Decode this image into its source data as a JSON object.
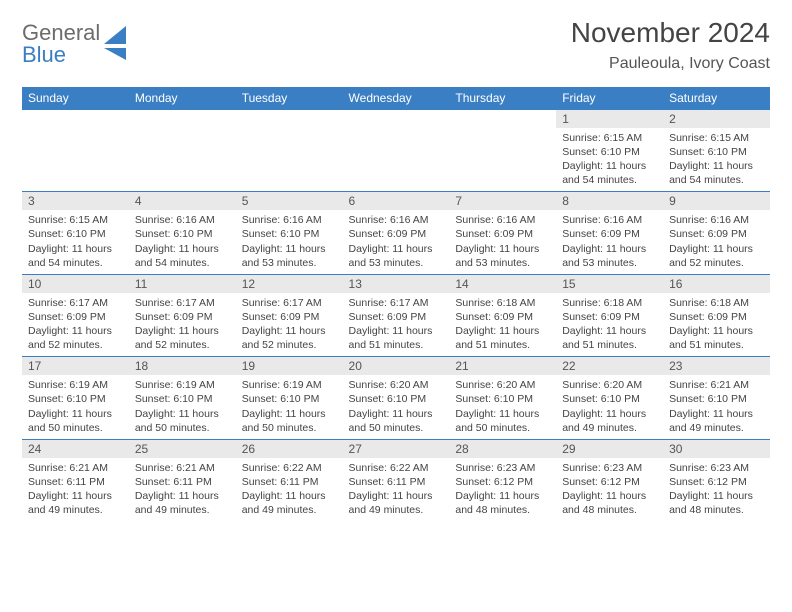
{
  "logo": {
    "top": "General",
    "bottom": "Blue"
  },
  "title": "November 2024",
  "location": "Pauleoula, Ivory Coast",
  "colors": {
    "header_blue": "#3a7fc4",
    "gray_text": "#6c6c6c",
    "daynum_bg": "#e9e9e9"
  },
  "weekdays": [
    "Sunday",
    "Monday",
    "Tuesday",
    "Wednesday",
    "Thursday",
    "Friday",
    "Saturday"
  ],
  "weeks": [
    [
      null,
      null,
      null,
      null,
      null,
      {
        "n": "1",
        "sr": "Sunrise: 6:15 AM",
        "ss": "Sunset: 6:10 PM",
        "dl": "Daylight: 11 hours and 54 minutes."
      },
      {
        "n": "2",
        "sr": "Sunrise: 6:15 AM",
        "ss": "Sunset: 6:10 PM",
        "dl": "Daylight: 11 hours and 54 minutes."
      }
    ],
    [
      {
        "n": "3",
        "sr": "Sunrise: 6:15 AM",
        "ss": "Sunset: 6:10 PM",
        "dl": "Daylight: 11 hours and 54 minutes."
      },
      {
        "n": "4",
        "sr": "Sunrise: 6:16 AM",
        "ss": "Sunset: 6:10 PM",
        "dl": "Daylight: 11 hours and 54 minutes."
      },
      {
        "n": "5",
        "sr": "Sunrise: 6:16 AM",
        "ss": "Sunset: 6:10 PM",
        "dl": "Daylight: 11 hours and 53 minutes."
      },
      {
        "n": "6",
        "sr": "Sunrise: 6:16 AM",
        "ss": "Sunset: 6:09 PM",
        "dl": "Daylight: 11 hours and 53 minutes."
      },
      {
        "n": "7",
        "sr": "Sunrise: 6:16 AM",
        "ss": "Sunset: 6:09 PM",
        "dl": "Daylight: 11 hours and 53 minutes."
      },
      {
        "n": "8",
        "sr": "Sunrise: 6:16 AM",
        "ss": "Sunset: 6:09 PM",
        "dl": "Daylight: 11 hours and 53 minutes."
      },
      {
        "n": "9",
        "sr": "Sunrise: 6:16 AM",
        "ss": "Sunset: 6:09 PM",
        "dl": "Daylight: 11 hours and 52 minutes."
      }
    ],
    [
      {
        "n": "10",
        "sr": "Sunrise: 6:17 AM",
        "ss": "Sunset: 6:09 PM",
        "dl": "Daylight: 11 hours and 52 minutes."
      },
      {
        "n": "11",
        "sr": "Sunrise: 6:17 AM",
        "ss": "Sunset: 6:09 PM",
        "dl": "Daylight: 11 hours and 52 minutes."
      },
      {
        "n": "12",
        "sr": "Sunrise: 6:17 AM",
        "ss": "Sunset: 6:09 PM",
        "dl": "Daylight: 11 hours and 52 minutes."
      },
      {
        "n": "13",
        "sr": "Sunrise: 6:17 AM",
        "ss": "Sunset: 6:09 PM",
        "dl": "Daylight: 11 hours and 51 minutes."
      },
      {
        "n": "14",
        "sr": "Sunrise: 6:18 AM",
        "ss": "Sunset: 6:09 PM",
        "dl": "Daylight: 11 hours and 51 minutes."
      },
      {
        "n": "15",
        "sr": "Sunrise: 6:18 AM",
        "ss": "Sunset: 6:09 PM",
        "dl": "Daylight: 11 hours and 51 minutes."
      },
      {
        "n": "16",
        "sr": "Sunrise: 6:18 AM",
        "ss": "Sunset: 6:09 PM",
        "dl": "Daylight: 11 hours and 51 minutes."
      }
    ],
    [
      {
        "n": "17",
        "sr": "Sunrise: 6:19 AM",
        "ss": "Sunset: 6:10 PM",
        "dl": "Daylight: 11 hours and 50 minutes."
      },
      {
        "n": "18",
        "sr": "Sunrise: 6:19 AM",
        "ss": "Sunset: 6:10 PM",
        "dl": "Daylight: 11 hours and 50 minutes."
      },
      {
        "n": "19",
        "sr": "Sunrise: 6:19 AM",
        "ss": "Sunset: 6:10 PM",
        "dl": "Daylight: 11 hours and 50 minutes."
      },
      {
        "n": "20",
        "sr": "Sunrise: 6:20 AM",
        "ss": "Sunset: 6:10 PM",
        "dl": "Daylight: 11 hours and 50 minutes."
      },
      {
        "n": "21",
        "sr": "Sunrise: 6:20 AM",
        "ss": "Sunset: 6:10 PM",
        "dl": "Daylight: 11 hours and 50 minutes."
      },
      {
        "n": "22",
        "sr": "Sunrise: 6:20 AM",
        "ss": "Sunset: 6:10 PM",
        "dl": "Daylight: 11 hours and 49 minutes."
      },
      {
        "n": "23",
        "sr": "Sunrise: 6:21 AM",
        "ss": "Sunset: 6:10 PM",
        "dl": "Daylight: 11 hours and 49 minutes."
      }
    ],
    [
      {
        "n": "24",
        "sr": "Sunrise: 6:21 AM",
        "ss": "Sunset: 6:11 PM",
        "dl": "Daylight: 11 hours and 49 minutes."
      },
      {
        "n": "25",
        "sr": "Sunrise: 6:21 AM",
        "ss": "Sunset: 6:11 PM",
        "dl": "Daylight: 11 hours and 49 minutes."
      },
      {
        "n": "26",
        "sr": "Sunrise: 6:22 AM",
        "ss": "Sunset: 6:11 PM",
        "dl": "Daylight: 11 hours and 49 minutes."
      },
      {
        "n": "27",
        "sr": "Sunrise: 6:22 AM",
        "ss": "Sunset: 6:11 PM",
        "dl": "Daylight: 11 hours and 49 minutes."
      },
      {
        "n": "28",
        "sr": "Sunrise: 6:23 AM",
        "ss": "Sunset: 6:12 PM",
        "dl": "Daylight: 11 hours and 48 minutes."
      },
      {
        "n": "29",
        "sr": "Sunrise: 6:23 AM",
        "ss": "Sunset: 6:12 PM",
        "dl": "Daylight: 11 hours and 48 minutes."
      },
      {
        "n": "30",
        "sr": "Sunrise: 6:23 AM",
        "ss": "Sunset: 6:12 PM",
        "dl": "Daylight: 11 hours and 48 minutes."
      }
    ]
  ]
}
